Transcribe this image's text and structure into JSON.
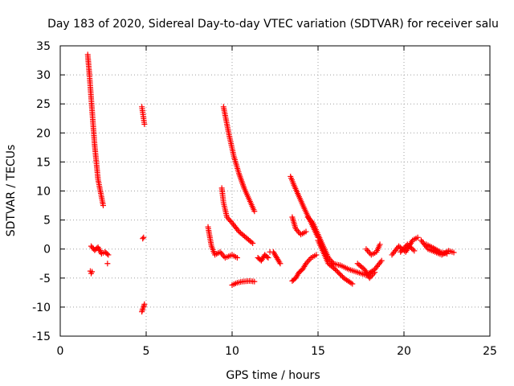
{
  "chart_data": {
    "type": "scatter",
    "title": "Day 183 of 2020, Sidereal Day-to-day VTEC variation (SDTVAR) for receiver salu",
    "xlabel": "GPS time / hours",
    "ylabel": "SDTVAR / TECUs",
    "xlim": [
      0,
      25
    ],
    "ylim": [
      -15,
      35
    ],
    "xticks": [
      0,
      5,
      10,
      15,
      20,
      25
    ],
    "yticks": [
      -15,
      -10,
      -5,
      0,
      5,
      10,
      15,
      20,
      25,
      30,
      35
    ],
    "grid": true,
    "marker": "+",
    "color": "#ff0000",
    "segments": [
      {
        "x": [
          1.6,
          1.7,
          1.8,
          1.9,
          2.0,
          2.1,
          2.2,
          2.3,
          2.4,
          2.5
        ],
        "y": [
          33.5,
          30,
          26,
          22,
          18,
          15,
          12,
          10.5,
          9,
          7.5
        ]
      },
      {
        "x": [
          1.75,
          1.8,
          1.85
        ],
        "y": [
          -3.8,
          -4.2,
          -3.9
        ]
      },
      {
        "x": [
          1.8,
          2.0,
          2.2,
          2.4,
          2.6,
          2.8
        ],
        "y": [
          0.5,
          -0.2,
          0.3,
          -0.8,
          -0.5,
          -1.0
        ]
      },
      {
        "x": [
          2.75
        ],
        "y": [
          -2.5
        ]
      },
      {
        "x": [
          4.75,
          4.8,
          4.85,
          4.9
        ],
        "y": [
          24.5,
          23.5,
          22.5,
          21.5
        ]
      },
      {
        "x": [
          4.8,
          4.85
        ],
        "y": [
          1.8,
          2.0
        ]
      },
      {
        "x": [
          4.75,
          4.8,
          4.85,
          4.9
        ],
        "y": [
          -10.8,
          -10.3,
          -10,
          -9.5
        ]
      },
      {
        "x": [
          8.6,
          8.8,
          9.0,
          9.3,
          9.6,
          10.0,
          10.3
        ],
        "y": [
          3.8,
          0.5,
          -1.0,
          -0.5,
          -1.5,
          -1.0,
          -1.5
        ]
      },
      {
        "x": [
          9.5,
          9.8,
          10.1,
          10.4,
          10.7,
          11.0,
          11.3
        ],
        "y": [
          24.5,
          20,
          16,
          13,
          10.5,
          8.5,
          6.5
        ]
      },
      {
        "x": [
          9.4,
          9.5,
          9.7,
          10.0,
          10.4,
          10.8,
          11.2
        ],
        "y": [
          10.5,
          8,
          5.5,
          4.5,
          3,
          2,
          1
        ]
      },
      {
        "x": [
          10.0,
          10.3,
          10.6,
          11.0,
          11.3
        ],
        "y": [
          -6.2,
          -5.8,
          -5.6,
          -5.5,
          -5.6
        ]
      },
      {
        "x": [
          11.5,
          11.7,
          11.9,
          12.1
        ],
        "y": [
          -1.5,
          -2.0,
          -1.0,
          -1.5
        ]
      },
      {
        "x": [
          12.2
        ],
        "y": [
          -0.5
        ]
      },
      {
        "x": [
          12.4,
          12.6,
          12.8
        ],
        "y": [
          -0.5,
          -1.5,
          -2.5
        ]
      },
      {
        "x": [
          13.4,
          13.6,
          13.9,
          14.2,
          14.6,
          15.0
        ],
        "y": [
          12.5,
          11,
          9,
          7,
          4.5,
          2
        ]
      },
      {
        "x": [
          13.5,
          13.7,
          14.0,
          14.3
        ],
        "y": [
          5.5,
          3.5,
          2.5,
          3.0
        ]
      },
      {
        "x": [
          14.4,
          14.7,
          15.0,
          15.3,
          15.6,
          15.9
        ],
        "y": [
          5.5,
          4.5,
          2.5,
          0.5,
          -1.5,
          -2.5
        ]
      },
      {
        "x": [
          13.5,
          13.7,
          13.9,
          14.1,
          14.3,
          14.6,
          14.9
        ],
        "y": [
          -5.5,
          -5,
          -4,
          -3.5,
          -2.5,
          -1.5,
          -1
        ]
      },
      {
        "x": [
          15.0,
          15.3,
          15.6,
          16.0,
          16.5,
          17.0
        ],
        "y": [
          1.5,
          -0.5,
          -2.5,
          -3.5,
          -5.0,
          -6.0
        ]
      },
      {
        "x": [
          15.8,
          16.3,
          16.8,
          17.3,
          17.8,
          18.3,
          18.7
        ],
        "y": [
          -2.5,
          -2.8,
          -3.5,
          -4.0,
          -4.5,
          -3.5,
          -2.0
        ]
      },
      {
        "x": [
          17.3,
          17.7,
          18.0,
          18.3
        ],
        "y": [
          -2.5,
          -3.5,
          -5,
          -4
        ]
      },
      {
        "x": [
          17.8,
          18.1,
          18.4,
          18.6
        ],
        "y": [
          0.0,
          -1.0,
          -0.5,
          0.8
        ]
      },
      {
        "x": [
          19.3,
          19.7,
          20.1,
          20.5,
          20.8
        ],
        "y": [
          -1.0,
          0.5,
          -0.5,
          1.5,
          2.0
        ]
      },
      {
        "x": [
          19.8,
          20.2,
          20.6
        ],
        "y": [
          -0.5,
          0.8,
          -0.3
        ]
      },
      {
        "x": [
          21.0,
          21.4,
          21.8,
          22.2,
          22.6,
          22.9
        ],
        "y": [
          1.5,
          0.0,
          -0.5,
          -1.0,
          -0.3,
          -0.6
        ]
      },
      {
        "x": [
          21.3,
          21.7,
          22.1,
          22.5
        ],
        "y": [
          0.8,
          0.2,
          -0.5,
          -0.8
        ]
      }
    ]
  }
}
